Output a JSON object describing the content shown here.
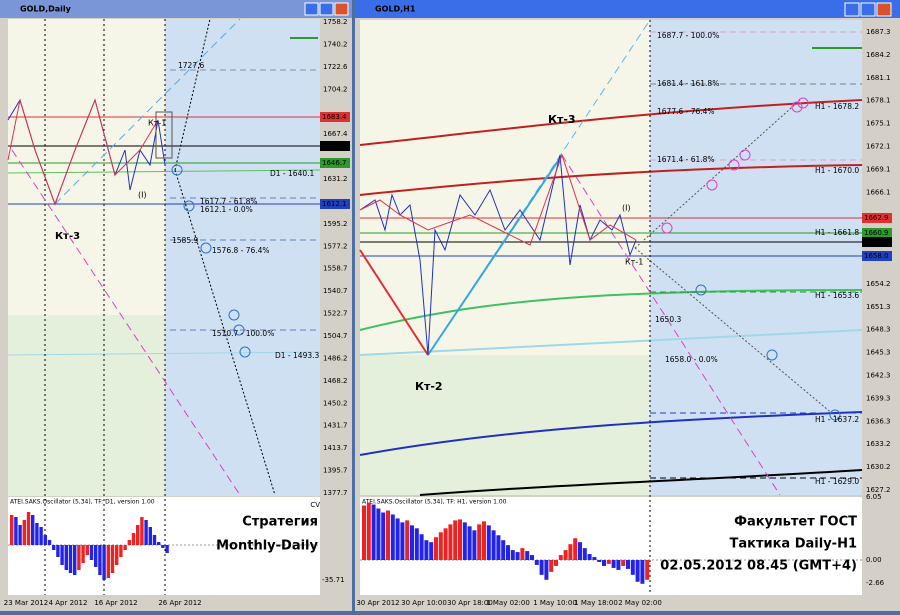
{
  "left": {
    "title": "GOLD,Daily",
    "prices": [
      "1758.2",
      "1740.2",
      "1722.6",
      "1704.2",
      null,
      "1667.4",
      null,
      "1631.2",
      null,
      "1595.2",
      "1577.2",
      "1558.7",
      "1540.7",
      "1522.7",
      "1504.7",
      "1486.2",
      "1468.2",
      "1450.2",
      "1431.7",
      "1413.7",
      "1395.7",
      "1377.7"
    ],
    "price_boxes": [
      "1683.4",
      "1659.8",
      "1646.7",
      "1612.1"
    ],
    "dates": [
      "23 Mar 2012",
      "4 Apr 2012",
      "16 Apr 2012",
      "26 Apr 2012"
    ],
    "annotations": [
      "Кт-3",
      "Кт-1",
      "(I)",
      "1727.6",
      "1617.7 - 61.8%",
      "1612.1 - 0.0%",
      "1585.9",
      "1576.8 - 76.4%",
      "1510.7 - 100.0%",
      "D1 - 1640.1",
      "D1 - 1493.3"
    ],
    "oscillator": {
      "title": "ATEI.SAKS.Oscillator (5,34), TF: D1, version 1.00",
      "labels": [
        "CV",
        "-35.71"
      ],
      "values": [
        30,
        28,
        20,
        25,
        33,
        30,
        22,
        18,
        10,
        5,
        -5,
        -12,
        -20,
        -25,
        -28,
        -30,
        -25,
        -18,
        -10,
        -15,
        -22,
        -30,
        -35,
        -33,
        -28,
        -20,
        -12,
        -5,
        5,
        12,
        20,
        28,
        25,
        18,
        10,
        3,
        -3,
        -8
      ]
    },
    "caption": [
      "Стратегия",
      "Monthly-Daily"
    ]
  },
  "right": {
    "title": "GOLD,H1",
    "prices": [
      "1687.3",
      "1684.2",
      "1681.1",
      "1678.1",
      "1675.1",
      "1672.1",
      "1669.1",
      "1666.1",
      null,
      null,
      null,
      "1654.2",
      "1651.3",
      "1648.3",
      "1645.3",
      "1642.3",
      "1639.3",
      "1636.3",
      "1633.2",
      "1630.2",
      "1627.2"
    ],
    "price_boxes": [
      "1662.9",
      "1660.9",
      "1659.8",
      "1658.0"
    ],
    "dates": [
      "30 Apr 2012",
      "30 Apr 10:00",
      "30 Apr 18:00",
      "1 May 02:00",
      "1 May 10:00",
      "1 May 18:00",
      "2 May 02:00"
    ],
    "annotations": [
      "1687.7 - 100.0%",
      "1681.4 - 161.8%",
      "1677.6 - 76.4%",
      "1671.4 - 61.8%",
      "H1 - 1678.2",
      "H1 - 1670.0",
      "H1 - 1661.8",
      "H1 - 1653.6",
      "H1 - 1637.2",
      "H1 - 1629.0",
      "1650.3",
      "1658.0 - 0.0%",
      "Кт-3",
      "Кт-2",
      "Кт-1",
      "(I)"
    ],
    "oscillator": {
      "title": "ATEI.SAKS.Oscillator (5,34), TF: H1, version 1.00",
      "labels": [
        "6.05",
        "0.00",
        "-2.66"
      ],
      "values": [
        5.5,
        5.8,
        5.6,
        5.2,
        4.8,
        5.0,
        4.6,
        4.2,
        3.8,
        4.0,
        3.5,
        3.2,
        2.6,
        2.0,
        1.8,
        2.3,
        2.8,
        3.2,
        3.6,
        4.0,
        4.1,
        3.8,
        3.4,
        3.0,
        3.6,
        3.9,
        3.5,
        3.0,
        2.5,
        2.0,
        1.5,
        1.0,
        0.8,
        1.2,
        0.9,
        0.5,
        -0.5,
        -1.5,
        -2.0,
        -1.2,
        -0.6,
        0.5,
        1.0,
        1.6,
        2.2,
        1.8,
        1.2,
        0.6,
        0.3,
        -0.2,
        -0.6,
        -0.4,
        -0.8,
        -1.0,
        -0.6,
        -0.9,
        -1.5,
        -2.2,
        -2.4,
        -2.0
      ]
    },
    "caption": [
      "Факультет ГОСТ",
      "Тактика Daily-H1",
      "02.05.2012 08.45 (GMT+4)"
    ]
  }
}
